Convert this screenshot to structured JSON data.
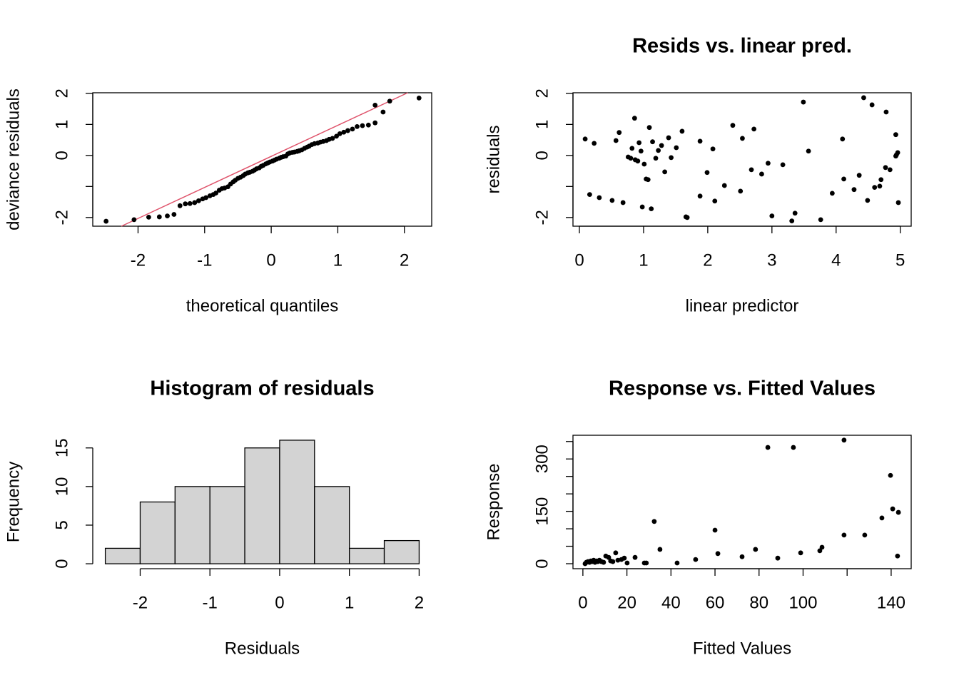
{
  "chart_data": [
    {
      "type": "qq",
      "xlabel": "theoretical quantiles",
      "ylabel": "deviance residuals",
      "color": "#000000",
      "x": [
        -2.48,
        -2.06,
        -1.84,
        -1.68,
        -1.56,
        -1.46,
        -1.37,
        -1.29,
        -1.22,
        -1.15,
        -1.09,
        -1.03,
        -0.98,
        -0.92,
        -0.87,
        -0.83,
        -0.78,
        -0.74,
        -0.7,
        -0.65,
        -0.61,
        -0.57,
        -0.54,
        -0.5,
        -0.46,
        -0.42,
        -0.39,
        -0.35,
        -0.32,
        -0.28,
        -0.25,
        -0.22,
        -0.18,
        -0.15,
        -0.12,
        -0.08,
        -0.05,
        -0.02,
        0.02,
        0.05,
        0.08,
        0.12,
        0.15,
        0.18,
        0.22,
        0.25,
        0.28,
        0.32,
        0.35,
        0.39,
        0.42,
        0.46,
        0.5,
        0.54,
        0.57,
        0.61,
        0.65,
        0.7,
        0.74,
        0.78,
        0.83,
        0.87,
        0.92,
        0.98,
        1.03,
        1.09,
        1.15,
        1.22,
        1.29,
        1.37,
        1.46,
        1.56,
        1.68,
        1.56,
        1.78,
        2.22
      ],
      "y": [
        -2.12,
        -2.07,
        -1.99,
        -1.98,
        -1.95,
        -1.9,
        -1.62,
        -1.56,
        -1.55,
        -1.52,
        -1.46,
        -1.4,
        -1.36,
        -1.3,
        -1.26,
        -1.21,
        -1.12,
        -1.07,
        -1.05,
        -1.01,
        -0.92,
        -0.85,
        -0.8,
        -0.74,
        -0.7,
        -0.65,
        -0.6,
        -0.56,
        -0.54,
        -0.51,
        -0.47,
        -0.43,
        -0.4,
        -0.35,
        -0.32,
        -0.27,
        -0.24,
        -0.21,
        -0.18,
        -0.15,
        -0.12,
        -0.09,
        -0.06,
        -0.04,
        -0.02,
        0.05,
        0.08,
        0.1,
        0.11,
        0.13,
        0.15,
        0.18,
        0.23,
        0.27,
        0.3,
        0.35,
        0.38,
        0.4,
        0.43,
        0.45,
        0.48,
        0.52,
        0.55,
        0.62,
        0.7,
        0.75,
        0.8,
        0.85,
        0.93,
        0.96,
        0.98,
        1.05,
        1.4,
        1.62,
        1.75,
        1.85
      ],
      "qqline": {
        "intercept": -0.03,
        "slope": 1.0,
        "color": "#DF536B"
      },
      "xlim": [
        -2.68,
        2.41
      ],
      "ylim": [
        -2.28,
        2.02
      ],
      "xticks": [
        -2,
        -1,
        0,
        1,
        2
      ],
      "yticks": [
        -2,
        {
          "value": -1,
          "label": null
        },
        0,
        1,
        2
      ],
      "box": true
    },
    {
      "type": "scatter",
      "title": "Resids vs. linear pred.",
      "xlabel": "linear predictor",
      "ylabel": "residuals",
      "color": "#000000",
      "x": [
        0.09,
        0.23,
        0.16,
        0.31,
        0.51,
        0.68,
        0.57,
        0.62,
        0.86,
        0.82,
        0.76,
        0.8,
        0.87,
        0.91,
        0.96,
        0.93,
        1.01,
        1.04,
        1.07,
        0.98,
        1.12,
        1.09,
        1.14,
        1.19,
        1.23,
        1.28,
        1.33,
        1.39,
        1.43,
        1.51,
        1.6,
        1.66,
        1.68,
        1.88,
        1.88,
        1.99,
        2.08,
        2.11,
        2.26,
        2.39,
        2.51,
        2.54,
        2.68,
        2.72,
        2.84,
        2.94,
        3.0,
        3.17,
        3.31,
        3.36,
        3.49,
        3.57,
        3.76,
        3.94,
        4.1,
        4.12,
        4.28,
        4.36,
        4.43,
        4.49,
        4.56,
        4.6,
        4.68,
        4.7,
        4.78,
        4.77,
        4.84,
        4.93,
        4.93,
        4.96,
        4.97,
        4.94
      ],
      "y": [
        0.53,
        0.39,
        -1.26,
        -1.36,
        -1.45,
        -1.52,
        0.48,
        0.74,
        1.2,
        0.23,
        -0.05,
        -0.09,
        -0.14,
        -0.18,
        0.14,
        0.41,
        -0.28,
        -0.76,
        -0.78,
        -1.66,
        -1.72,
        0.9,
        0.44,
        -0.09,
        0.16,
        0.32,
        -0.53,
        0.57,
        -0.07,
        0.25,
        0.78,
        -1.98,
        -2.0,
        0.46,
        -1.31,
        -0.55,
        0.21,
        -1.47,
        -0.97,
        0.97,
        -1.15,
        0.55,
        -0.46,
        0.85,
        -0.6,
        -0.25,
        -1.95,
        -0.3,
        -2.11,
        -1.86,
        1.72,
        0.14,
        -2.07,
        -1.22,
        0.53,
        -0.76,
        -1.1,
        -0.64,
        1.86,
        -1.45,
        1.63,
        -1.03,
        -0.99,
        -0.78,
        1.4,
        -0.39,
        -0.46,
        0.67,
        -0.02,
        0.09,
        -1.52,
        0.02
      ],
      "xlim": [
        -0.1,
        5.17
      ],
      "ylim": [
        -2.28,
        2.02
      ],
      "xticks": [
        0,
        1,
        2,
        3,
        4,
        5
      ],
      "yticks": [
        -2,
        {
          "value": -1,
          "label": null
        },
        0,
        1,
        2
      ],
      "box": true
    },
    {
      "type": "histogram",
      "title": "Histogram of residuals",
      "xlabel": "Residuals",
      "ylabel": "Frequency",
      "bins": [
        -2.5,
        -2,
        -1.5,
        -1,
        -0.5,
        0,
        0.5,
        1,
        1.5,
        2
      ],
      "counts": [
        2,
        8,
        10,
        10,
        15,
        16,
        10,
        2,
        3
      ],
      "color": "#D3D3D3",
      "edgecolor": "#000000",
      "xlim": [
        -2.68,
        2.18
      ],
      "ylim": [
        -0.64,
        16.64
      ],
      "xticks": [
        -2,
        -1,
        0,
        1,
        2
      ],
      "yticks": [
        0,
        5,
        10,
        15
      ],
      "box": false
    },
    {
      "type": "scatter",
      "title": "Response vs. Fitted Values",
      "xlabel": "Fitted Values",
      "ylabel": "Response",
      "color": "#000000",
      "x": [
        1,
        1.6,
        2.3,
        3,
        3.6,
        4.2,
        4.9,
        5.5,
        6.2,
        6.8,
        7.5,
        8.4,
        9.4,
        10.4,
        11.7,
        12.6,
        13.6,
        14.9,
        15.9,
        17.5,
        18.8,
        20.1,
        23.7,
        27.9,
        28.8,
        32.4,
        35,
        42.8,
        51.2,
        60,
        61.3,
        72.3,
        78.4,
        84,
        88.5,
        95.6,
        98.9,
        107.6,
        108.6,
        118.6,
        118.6,
        128,
        135.8,
        139.7,
        140.7,
        143.3,
        142.9
      ],
      "y": [
        0,
        4,
        6,
        4,
        8,
        6,
        10,
        4,
        8,
        6,
        10,
        6,
        4,
        22,
        18,
        8,
        6,
        31,
        10,
        12,
        16,
        2,
        18,
        2,
        2,
        121,
        41,
        2,
        12,
        96,
        29,
        20,
        41,
        333,
        16,
        333,
        31,
        37,
        47,
        82,
        354,
        82,
        131,
        253,
        157,
        147,
        22
      ],
      "xlim": [
        -4.5,
        149.1
      ],
      "ylim": [
        -14.3,
        367.9
      ],
      "xticks": [
        0,
        20,
        40,
        60,
        80,
        100,
        {
          "value": 120,
          "label": null
        },
        140
      ],
      "yticks": [
        0,
        {
          "value": 50,
          "label": null
        },
        {
          "value": 100,
          "label": null
        },
        150,
        {
          "value": 200,
          "label": null
        },
        {
          "value": 250,
          "label": null
        },
        300,
        {
          "value": 350,
          "label": null
        }
      ],
      "box": true
    }
  ]
}
